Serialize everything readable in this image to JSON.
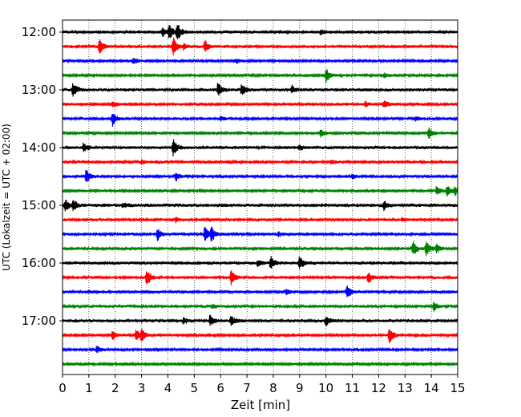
{
  "chart_data": {
    "type": "line",
    "title": "",
    "xlabel": "Zeit  [min]",
    "ylabel": "UTC (Lokalzeit = UTC + 02:00)",
    "xlim": [
      0,
      15
    ],
    "x_ticks": [
      0,
      1,
      2,
      3,
      4,
      5,
      6,
      7,
      8,
      9,
      10,
      11,
      12,
      13,
      14,
      15
    ],
    "grid": "vertical dotted",
    "trace_interval_min": 15,
    "traces_start": "12:00",
    "y_tick_labels": [
      "12:00",
      "13:00",
      "14:00",
      "15:00",
      "16:00",
      "17:00"
    ],
    "color_cycle": [
      "#000000",
      "#ff0000",
      "#0000ff",
      "#008000"
    ],
    "series": [
      {
        "start": "12:00",
        "color": "#000000",
        "noise": 2.2,
        "events": [
          {
            "t": 3.8,
            "a": 6
          },
          {
            "t": 4.05,
            "a": 8
          },
          {
            "t": 4.35,
            "a": 12
          },
          {
            "t": 9.8,
            "a": 3
          }
        ]
      },
      {
        "start": "12:15",
        "color": "#ff0000",
        "noise": 2.0,
        "events": [
          {
            "t": 1.4,
            "a": 9
          },
          {
            "t": 4.2,
            "a": 12
          },
          {
            "t": 5.4,
            "a": 7
          },
          {
            "t": 4.6,
            "a": 4
          }
        ]
      },
      {
        "start": "12:30",
        "color": "#0000ff",
        "noise": 1.8,
        "events": [
          {
            "t": 2.7,
            "a": 4
          },
          {
            "t": 6.6,
            "a": 3
          }
        ]
      },
      {
        "start": "12:45",
        "color": "#008000",
        "noise": 1.8,
        "events": [
          {
            "t": 10.0,
            "a": 10
          },
          {
            "t": 12.2,
            "a": 3
          }
        ]
      },
      {
        "start": "13:00",
        "color": "#000000",
        "noise": 2.2,
        "events": [
          {
            "t": 0.4,
            "a": 10
          },
          {
            "t": 5.9,
            "a": 9
          },
          {
            "t": 6.8,
            "a": 7
          },
          {
            "t": 8.7,
            "a": 5
          }
        ]
      },
      {
        "start": "13:15",
        "color": "#ff0000",
        "noise": 1.9,
        "events": [
          {
            "t": 1.9,
            "a": 4
          },
          {
            "t": 12.2,
            "a": 6
          },
          {
            "t": 11.5,
            "a": 3
          }
        ]
      },
      {
        "start": "13:30",
        "color": "#0000ff",
        "noise": 1.8,
        "events": [
          {
            "t": 1.9,
            "a": 9
          },
          {
            "t": 6.0,
            "a": 3
          },
          {
            "t": 13.4,
            "a": 3
          }
        ]
      },
      {
        "start": "13:45",
        "color": "#008000",
        "noise": 1.8,
        "events": [
          {
            "t": 9.8,
            "a": 5
          },
          {
            "t": 13.9,
            "a": 7
          }
        ]
      },
      {
        "start": "14:00",
        "color": "#000000",
        "noise": 2.2,
        "events": [
          {
            "t": 0.8,
            "a": 6
          },
          {
            "t": 4.2,
            "a": 11
          },
          {
            "t": 9.0,
            "a": 3
          }
        ]
      },
      {
        "start": "14:15",
        "color": "#ff0000",
        "noise": 1.9,
        "events": [
          {
            "t": 3.0,
            "a": 3
          },
          {
            "t": 10.2,
            "a": 3
          }
        ]
      },
      {
        "start": "14:30",
        "color": "#0000ff",
        "noise": 1.9,
        "events": [
          {
            "t": 0.9,
            "a": 9
          },
          {
            "t": 4.3,
            "a": 6
          },
          {
            "t": 11.0,
            "a": 3
          }
        ]
      },
      {
        "start": "14:45",
        "color": "#008000",
        "noise": 1.9,
        "events": [
          {
            "t": 14.2,
            "a": 6
          },
          {
            "t": 14.6,
            "a": 6
          },
          {
            "t": 14.9,
            "a": 5
          }
        ]
      },
      {
        "start": "15:00",
        "color": "#000000",
        "noise": 2.4,
        "events": [
          {
            "t": 0.1,
            "a": 7
          },
          {
            "t": 0.4,
            "a": 6
          },
          {
            "t": 12.2,
            "a": 6
          },
          {
            "t": 2.3,
            "a": 3
          }
        ]
      },
      {
        "start": "15:15",
        "color": "#ff0000",
        "noise": 1.9,
        "events": [
          {
            "t": 4.3,
            "a": 3
          },
          {
            "t": 12.9,
            "a": 3
          }
        ]
      },
      {
        "start": "15:30",
        "color": "#0000ff",
        "noise": 1.9,
        "events": [
          {
            "t": 3.6,
            "a": 8
          },
          {
            "t": 5.4,
            "a": 10
          },
          {
            "t": 5.65,
            "a": 9
          },
          {
            "t": 8.2,
            "a": 3
          }
        ]
      },
      {
        "start": "15:45",
        "color": "#008000",
        "noise": 1.9,
        "events": [
          {
            "t": 13.3,
            "a": 10
          },
          {
            "t": 13.8,
            "a": 10
          },
          {
            "t": 14.2,
            "a": 6
          }
        ]
      },
      {
        "start": "16:00",
        "color": "#000000",
        "noise": 2.2,
        "events": [
          {
            "t": 7.9,
            "a": 8
          },
          {
            "t": 9.0,
            "a": 9
          },
          {
            "t": 7.4,
            "a": 4
          }
        ]
      },
      {
        "start": "16:15",
        "color": "#ff0000",
        "noise": 1.9,
        "events": [
          {
            "t": 3.2,
            "a": 12
          },
          {
            "t": 6.4,
            "a": 10
          },
          {
            "t": 11.6,
            "a": 8
          }
        ]
      },
      {
        "start": "16:30",
        "color": "#0000ff",
        "noise": 1.9,
        "events": [
          {
            "t": 10.8,
            "a": 10
          },
          {
            "t": 8.5,
            "a": 3
          }
        ]
      },
      {
        "start": "16:45",
        "color": "#008000",
        "noise": 1.9,
        "events": [
          {
            "t": 14.1,
            "a": 6
          },
          {
            "t": 5.7,
            "a": 3
          }
        ]
      },
      {
        "start": "17:00",
        "color": "#000000",
        "noise": 2.1,
        "events": [
          {
            "t": 5.6,
            "a": 7
          },
          {
            "t": 6.4,
            "a": 7
          },
          {
            "t": 10.0,
            "a": 7
          },
          {
            "t": 4.6,
            "a": 4
          }
        ]
      },
      {
        "start": "17:15",
        "color": "#ff0000",
        "noise": 1.8,
        "events": [
          {
            "t": 1.9,
            "a": 6
          },
          {
            "t": 2.8,
            "a": 8
          },
          {
            "t": 3.0,
            "a": 7
          },
          {
            "t": 12.4,
            "a": 11
          }
        ]
      },
      {
        "start": "17:30",
        "color": "#0000ff",
        "noise": 1.7,
        "events": [
          {
            "t": 1.3,
            "a": 5
          }
        ]
      },
      {
        "start": "17:45",
        "color": "#008000",
        "noise": 1.7,
        "events": []
      }
    ]
  }
}
